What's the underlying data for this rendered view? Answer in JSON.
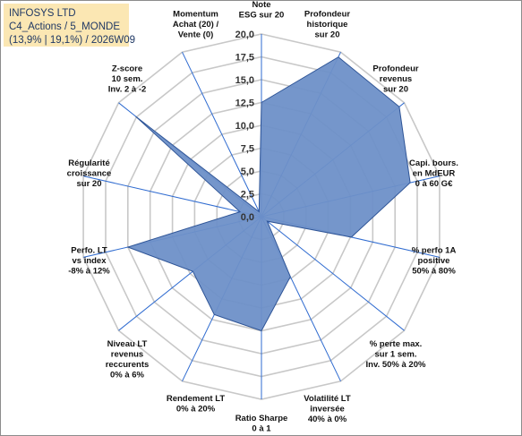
{
  "info": {
    "line1": "INFOSYS LTD",
    "line2": "C4_Actions / 5_MONDE",
    "line3": "(13,9% | 19,1%) / 2026W09"
  },
  "colors": {
    "fill": "#6e90c8",
    "stroke": "#2f5597",
    "grid": "#c8c8c8",
    "spoke": "#2f6bd0"
  },
  "chart_data": {
    "type": "radar",
    "rmin": 0,
    "rmax": 20,
    "tick_values": [
      0,
      2.5,
      5,
      7.5,
      10,
      12.5,
      15,
      17.5,
      20
    ],
    "tick_labels": [
      "0,0",
      "2,5",
      "5,0",
      "7,5",
      "10,0",
      "12,5",
      "15,0",
      "17,5",
      "20,0"
    ],
    "grid": true,
    "axes": [
      {
        "label_lines": [
          "Note",
          "ESG sur 20"
        ],
        "value": 12.5
      },
      {
        "label_lines": [
          "Profondeur",
          "historique",
          "sur 20"
        ],
        "value": 19.4
      },
      {
        "label_lines": [
          "Profondeur",
          "revenus",
          "sur 20"
        ],
        "value": 19.3
      },
      {
        "label_lines": [
          "Capi. bours.",
          "en MdEUR",
          "0 à 60 G€"
        ],
        "value": 16.7
      },
      {
        "label_lines": [
          "% perfo 1A",
          "positive",
          "50% à 80%"
        ],
        "value": 10.1
      },
      {
        "label_lines": [
          "% perte max.",
          "sur 1 sem.",
          "Inv. 50% à 20%"
        ],
        "value": 0.8
      },
      {
        "label_lines": [
          "Volatilité LT",
          "inversée",
          "40% à 0%"
        ],
        "value": 7.3
      },
      {
        "label_lines": [
          "Ratio Sharpe",
          "0 à 1"
        ],
        "value": 12.5
      },
      {
        "label_lines": [
          "Rendement LT",
          "0% à 20%"
        ],
        "value": 11.9
      },
      {
        "label_lines": [
          "Niveau LT",
          "revenus",
          "reccurents",
          "0% à 6%"
        ],
        "value": 9.6
      },
      {
        "label_lines": [
          "Perfo. LT",
          "vs index",
          "-8% à 12%"
        ],
        "value": 15.0
      },
      {
        "label_lines": [
          "Régularité",
          "croissance",
          "sur 20"
        ],
        "value": 2.4
      },
      {
        "label_lines": [
          "Z-score",
          "10 sem.",
          "Inv. 2 à -2"
        ],
        "value": 17.6
      },
      {
        "label_lines": [
          "Momentum",
          "Achat (20) /",
          "Vente (0)"
        ],
        "value": 0.6
      }
    ]
  }
}
